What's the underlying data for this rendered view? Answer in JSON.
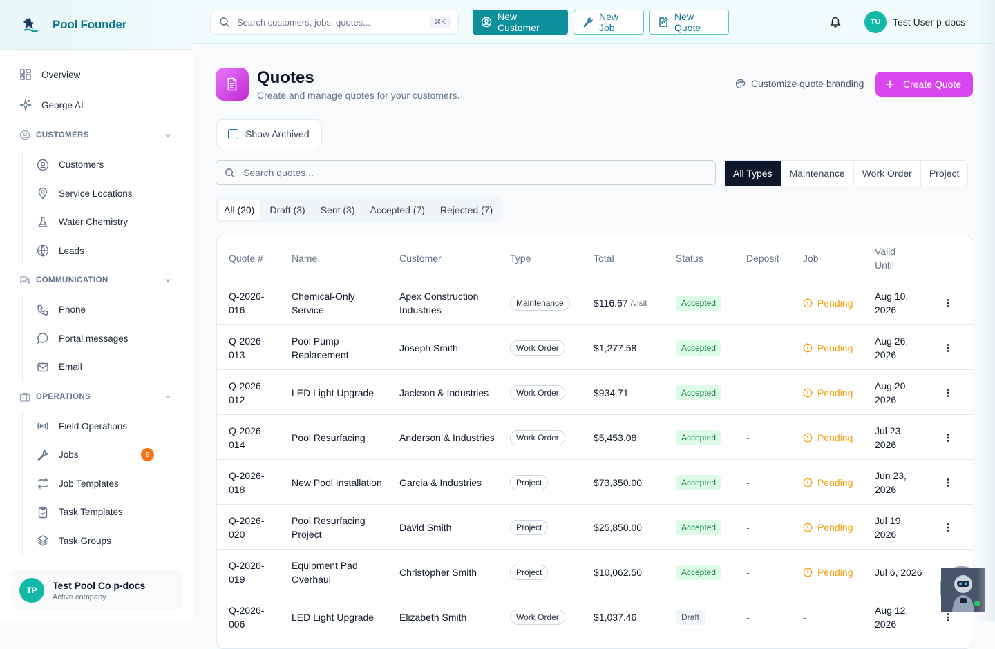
{
  "brand": {
    "name": "Pool Founder"
  },
  "sidebar": {
    "top_items": [
      {
        "label": "Overview",
        "icon": "grid-icon"
      },
      {
        "label": "George AI",
        "icon": "sparkles-icon"
      }
    ],
    "sections": [
      {
        "label": "CUSTOMERS",
        "icon": "user-circle-icon",
        "items": [
          {
            "label": "Customers",
            "icon": "user-circle-icon"
          },
          {
            "label": "Service Locations",
            "icon": "map-pin-icon"
          },
          {
            "label": "Water Chemistry",
            "icon": "flask-icon"
          },
          {
            "label": "Leads",
            "icon": "globe-icon"
          }
        ]
      },
      {
        "label": "COMMUNICATION",
        "icon": "chat-icon",
        "items": [
          {
            "label": "Phone",
            "icon": "phone-icon"
          },
          {
            "label": "Portal messages",
            "icon": "message-icon"
          },
          {
            "label": "Email",
            "icon": "mail-icon"
          }
        ]
      },
      {
        "label": "OPERATIONS",
        "icon": "briefcase-icon",
        "items": [
          {
            "label": "Field Operations",
            "icon": "radio-icon"
          },
          {
            "label": "Jobs",
            "icon": "wrench-icon",
            "badge": "6"
          },
          {
            "label": "Job Templates",
            "icon": "repeat-icon"
          },
          {
            "label": "Task Templates",
            "icon": "clipboard-icon"
          },
          {
            "label": "Task Groups",
            "icon": "layers-icon"
          }
        ]
      }
    ],
    "company": {
      "initials": "TP",
      "name": "Test Pool Co p-docs",
      "status": "Active company"
    }
  },
  "topbar": {
    "search_placeholder": "Search customers, jobs, quotes...",
    "shortcut": "⌘K",
    "new_customer": "New Customer",
    "new_job": "New Job",
    "new_quote": "New Quote",
    "user_initials": "TU",
    "user_name": "Test User p-docs"
  },
  "page": {
    "title": "Quotes",
    "subtitle": "Create and manage quotes for your customers.",
    "branding_link": "Customize quote branding",
    "create_button": "Create Quote",
    "show_archived": "Show Archived",
    "search_placeholder": "Search quotes...",
    "type_filters": [
      "All Types",
      "Maintenance",
      "Work Order",
      "Project"
    ],
    "status_tabs": [
      "All (20)",
      "Draft (3)",
      "Sent (3)",
      "Accepted (7)",
      "Rejected (7)"
    ]
  },
  "table": {
    "headers": [
      "Quote #",
      "Name",
      "Customer",
      "Type",
      "Total",
      "Status",
      "Deposit",
      "Job",
      "Valid Until"
    ],
    "rows": [
      {
        "num": "Q-2026-016",
        "name": "Chemical-Only Service",
        "customer": "Apex Construction Industries",
        "type": "Maintenance",
        "total": "$116.67",
        "suffix": "/visit",
        "status": "Accepted",
        "deposit": "-",
        "job": "Pending",
        "valid": "Aug 10, 2026"
      },
      {
        "num": "Q-2026-013",
        "name": "Pool Pump Replacement",
        "customer": "Joseph Smith",
        "type": "Work Order",
        "total": "$1,277.58",
        "suffix": "",
        "status": "Accepted",
        "deposit": "-",
        "job": "Pending",
        "valid": "Aug 26, 2026"
      },
      {
        "num": "Q-2026-012",
        "name": "LED Light Upgrade",
        "customer": "Jackson & Industries",
        "type": "Work Order",
        "total": "$934.71",
        "suffix": "",
        "status": "Accepted",
        "deposit": "-",
        "job": "Pending",
        "valid": "Aug 20, 2026"
      },
      {
        "num": "Q-2026-014",
        "name": "Pool Resurfacing",
        "customer": "Anderson & Industries",
        "type": "Work Order",
        "total": "$5,453.08",
        "suffix": "",
        "status": "Accepted",
        "deposit": "-",
        "job": "Pending",
        "valid": "Jul 23, 2026"
      },
      {
        "num": "Q-2026-018",
        "name": "New Pool Installation",
        "customer": "Garcia & Industries",
        "type": "Project",
        "total": "$73,350.00",
        "suffix": "",
        "status": "Accepted",
        "deposit": "-",
        "job": "Pending",
        "valid": "Jun 23, 2026"
      },
      {
        "num": "Q-2026-020",
        "name": "Pool Resurfacing Project",
        "customer": "David Smith",
        "type": "Project",
        "total": "$25,850.00",
        "suffix": "",
        "status": "Accepted",
        "deposit": "-",
        "job": "Pending",
        "valid": "Jul 19, 2026"
      },
      {
        "num": "Q-2026-019",
        "name": "Equipment Pad Overhaul",
        "customer": "Christopher Smith",
        "type": "Project",
        "total": "$10,062.50",
        "suffix": "",
        "status": "Accepted",
        "deposit": "-",
        "job": "Pending",
        "valid": "Jul 6, 2026"
      },
      {
        "num": "Q-2026-006",
        "name": "LED Light Upgrade",
        "customer": "Elizabeth Smith",
        "type": "Work Order",
        "total": "$1,037.46",
        "suffix": "",
        "status": "Draft",
        "deposit": "-",
        "job": "-",
        "valid": "Aug 12, 2026"
      }
    ]
  },
  "colors": {
    "brand": "#0e8f9c",
    "accent": "#d946ef",
    "pending": "#f59e0b",
    "accepted_bg": "#dcfce7"
  }
}
